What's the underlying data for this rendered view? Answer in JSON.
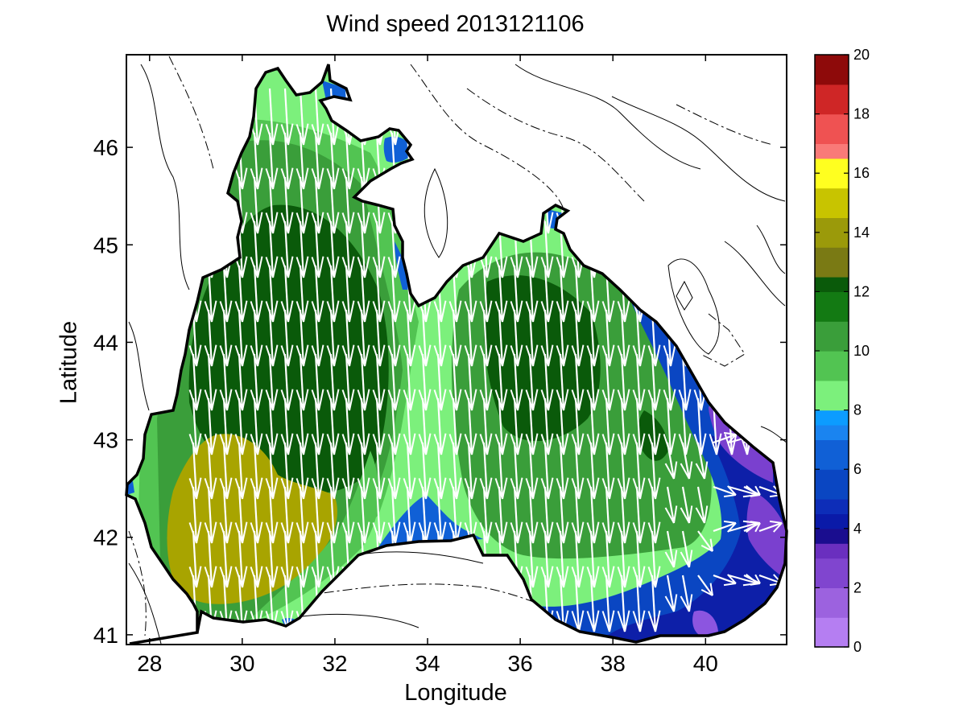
{
  "chart_data": {
    "type": "map",
    "title": "Wind speed 2013121106",
    "xlabel": "Longitude",
    "ylabel": "Latitude",
    "xlim": [
      27.5,
      41.75
    ],
    "ylim": [
      40.9,
      46.95
    ],
    "xticks": [
      28,
      30,
      32,
      34,
      36,
      38,
      40
    ],
    "yticks": [
      41,
      42,
      43,
      44,
      45,
      46
    ],
    "colorbar": {
      "min": 0,
      "max": 20,
      "ticks": [
        0,
        2,
        4,
        6,
        8,
        10,
        12,
        14,
        16,
        18,
        20
      ],
      "bands": [
        {
          "from": 0,
          "to": 1,
          "color": "#b57ef2"
        },
        {
          "from": 1,
          "to": 2,
          "color": "#9c62df"
        },
        {
          "from": 2,
          "to": 3,
          "color": "#8045cf"
        },
        {
          "from": 3,
          "to": 3.5,
          "color": "#6a2fbf"
        },
        {
          "from": 3.5,
          "to": 4,
          "color": "#1a0d8f"
        },
        {
          "from": 4,
          "to": 4.5,
          "color": "#0a1aa8"
        },
        {
          "from": 4.5,
          "to": 5,
          "color": "#0d2db8"
        },
        {
          "from": 5,
          "to": 6,
          "color": "#0a46c2"
        },
        {
          "from": 6,
          "to": 7,
          "color": "#1060d6"
        },
        {
          "from": 7,
          "to": 7.5,
          "color": "#1a84f0"
        },
        {
          "from": 7.5,
          "to": 8,
          "color": "#0c9cff"
        },
        {
          "from": 8,
          "to": 9,
          "color": "#7cf07c"
        },
        {
          "from": 9,
          "to": 10,
          "color": "#52c452"
        },
        {
          "from": 10,
          "to": 11,
          "color": "#3a9e3a"
        },
        {
          "from": 11,
          "to": 12,
          "color": "#137a13"
        },
        {
          "from": 12,
          "to": 12.5,
          "color": "#0a5a0a"
        },
        {
          "from": 12.5,
          "to": 13.5,
          "color": "#7a7a14"
        },
        {
          "from": 13.5,
          "to": 14.5,
          "color": "#9b9a0a"
        },
        {
          "from": 14.5,
          "to": 15.5,
          "color": "#c8c400"
        },
        {
          "from": 15.5,
          "to": 16.5,
          "color": "#ffff20"
        },
        {
          "from": 16.5,
          "to": 17,
          "color": "#f97a78"
        },
        {
          "from": 17,
          "to": 18,
          "color": "#ef5252"
        },
        {
          "from": 18,
          "to": 19,
          "color": "#cf2626"
        },
        {
          "from": 19,
          "to": 20,
          "color": "#8e0a0a"
        }
      ]
    },
    "regions": [
      {
        "name": "sea-fill",
        "speed": 8.5
      },
      {
        "name": "west-zone",
        "speed": 9.5
      },
      {
        "name": "west-core",
        "speed": 10.5
      },
      {
        "name": "west-max",
        "speed": 11.5
      },
      {
        "name": "central-zone",
        "speed": 9.5
      },
      {
        "name": "east-zone",
        "speed": 10.5
      },
      {
        "name": "east-max",
        "speed": 11.5
      },
      {
        "name": "southwest-max",
        "speed": 14.5
      },
      {
        "name": "east-coast-blue",
        "speed": 6
      },
      {
        "name": "east-coast-navy",
        "speed": 4.5
      },
      {
        "name": "east-coast-purple",
        "speed": 2.5
      },
      {
        "name": "south-coast-blue",
        "speed": 6.5
      }
    ],
    "wind_direction": "from north (southward) over most of the sea; variable near the southeastern coast"
  }
}
